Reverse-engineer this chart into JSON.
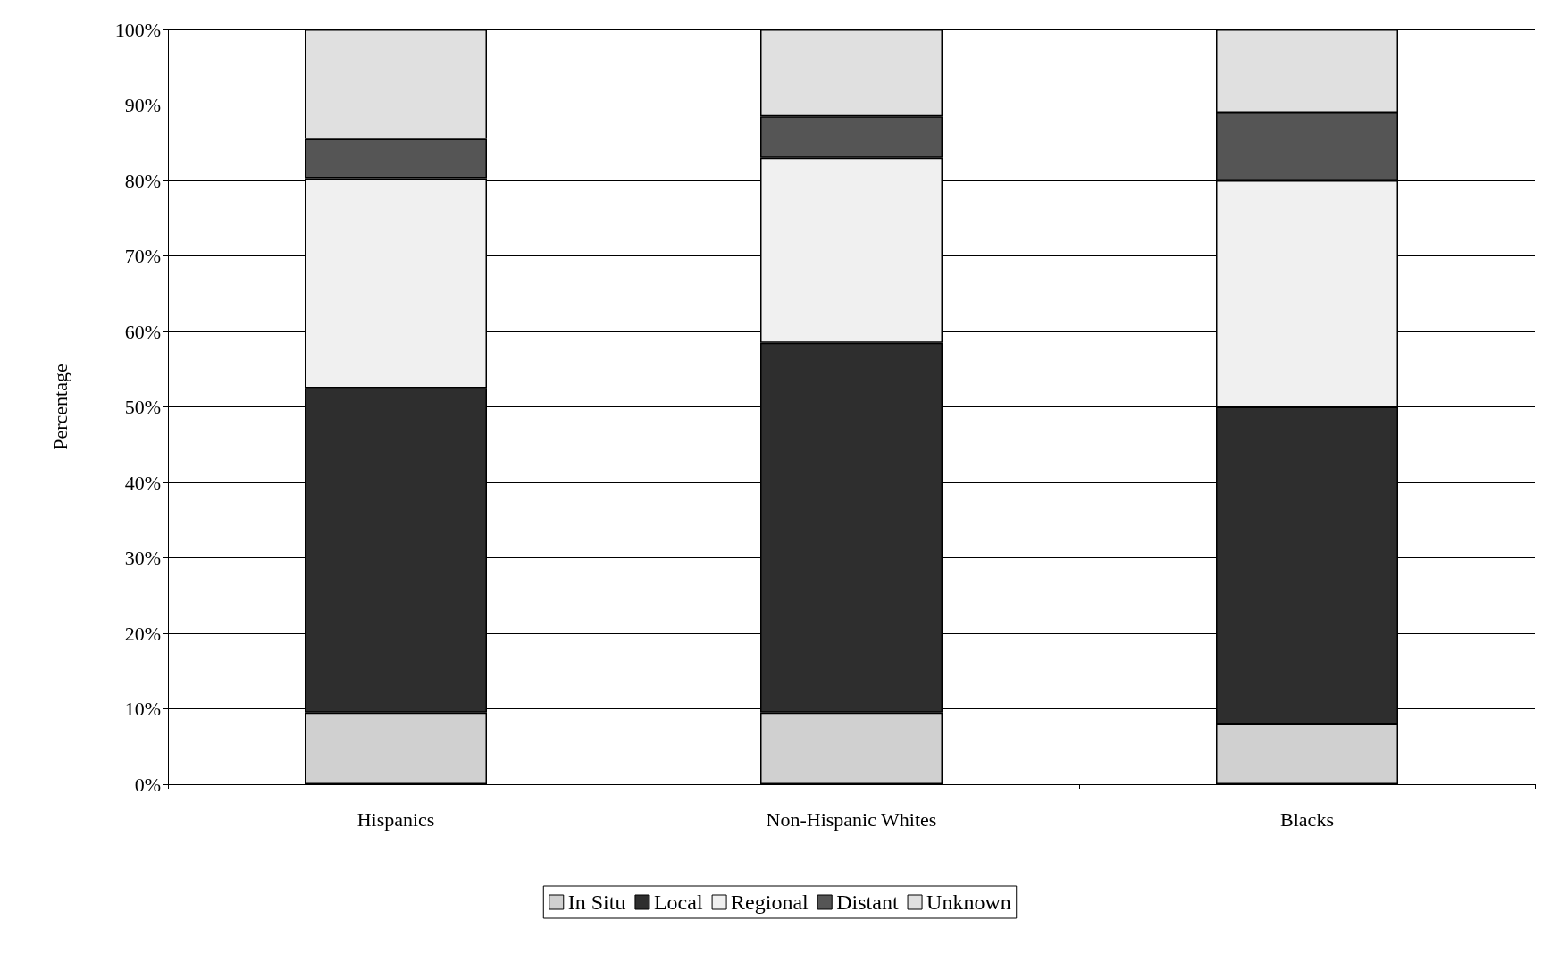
{
  "chart_data": {
    "type": "bar",
    "stacked": true,
    "ylabel": "Percentage",
    "categories": [
      "Hispanics",
      "Non-Hispanic Whites",
      "Blacks"
    ],
    "series": [
      {
        "name": "In Situ",
        "color": "#d0d0d0",
        "values": [
          9.5,
          9.5,
          8
        ]
      },
      {
        "name": "Local",
        "color": "#2e2e2e",
        "values": [
          43,
          49,
          42
        ]
      },
      {
        "name": "Regional",
        "color": "#f0f0f0",
        "values": [
          27.8,
          24.5,
          30
        ]
      },
      {
        "name": "Distant",
        "color": "#555555",
        "values": [
          5.2,
          5.5,
          9
        ]
      },
      {
        "name": "Unknown",
        "color": "#e0e0e0",
        "values": [
          14.5,
          11.5,
          11
        ]
      }
    ],
    "ylim": [
      0,
      100
    ],
    "yticks": [
      {
        "value": 0,
        "label": "0%"
      },
      {
        "value": 10,
        "label": "10%"
      },
      {
        "value": 20,
        "label": "20%"
      },
      {
        "value": 30,
        "label": "30%"
      },
      {
        "value": 40,
        "label": "40%"
      },
      {
        "value": 50,
        "label": "50%"
      },
      {
        "value": 60,
        "label": "60%"
      },
      {
        "value": 70,
        "label": "70%"
      },
      {
        "value": 80,
        "label": "80%"
      },
      {
        "value": 90,
        "label": "90%"
      },
      {
        "value": 100,
        "label": "100%"
      }
    ],
    "grid": "y",
    "legend": "bottom"
  }
}
